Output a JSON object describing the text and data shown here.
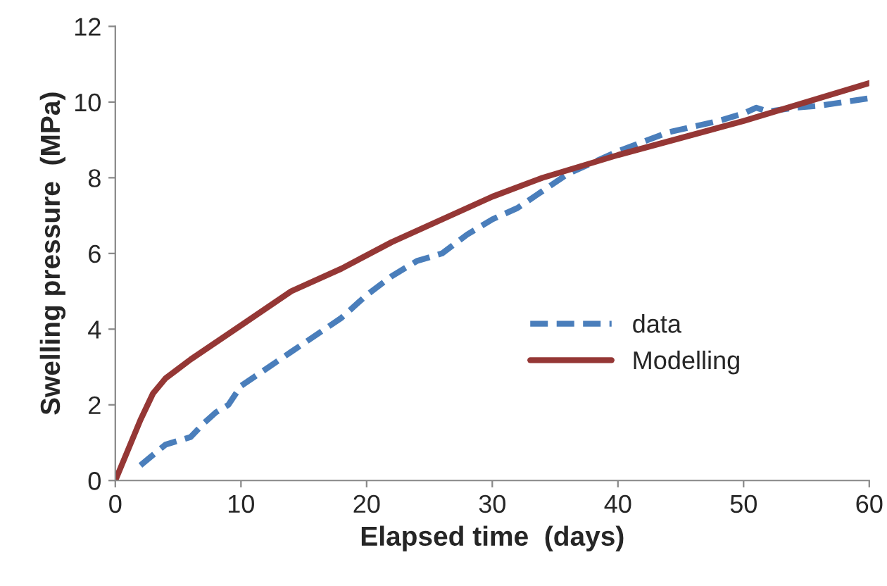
{
  "chart_data": {
    "type": "line",
    "xlabel": "Elapsed time  (days)",
    "ylabel": "Swelling pressure  (MPa)",
    "xlim": [
      0,
      60
    ],
    "xticks": [
      0,
      10,
      20,
      30,
      40,
      50,
      60
    ],
    "ylim": [
      0,
      12
    ],
    "yticks": [
      0,
      2,
      4,
      6,
      8,
      10,
      12
    ],
    "grid": false,
    "legend": "right",
    "marker": "none",
    "series": [
      {
        "name": "data",
        "color": "#4a7ebb",
        "line_style": "dashed",
        "x": [
          2,
          4,
          6,
          7,
          8,
          9,
          10,
          14,
          18,
          20,
          22,
          24,
          26,
          28,
          30,
          32,
          36,
          40,
          44,
          48,
          50,
          51,
          52,
          54,
          56,
          60
        ],
        "values": [
          0.4,
          0.95,
          1.15,
          1.5,
          1.8,
          2.0,
          2.5,
          3.4,
          4.3,
          4.9,
          5.4,
          5.8,
          6.0,
          6.5,
          6.9,
          7.2,
          8.1,
          8.7,
          9.2,
          9.5,
          9.7,
          9.85,
          9.75,
          9.85,
          9.9,
          10.1
        ]
      },
      {
        "name": "Modelling",
        "color": "#953735",
        "line_style": "solid",
        "x": [
          0,
          1,
          2,
          3,
          4,
          6,
          10,
          14,
          18,
          22,
          26,
          30,
          34,
          40,
          50,
          60
        ],
        "values": [
          0,
          0.8,
          1.6,
          2.3,
          2.7,
          3.2,
          4.1,
          5.0,
          5.6,
          6.3,
          6.9,
          7.5,
          8.0,
          8.6,
          9.5,
          10.5
        ]
      }
    ]
  }
}
